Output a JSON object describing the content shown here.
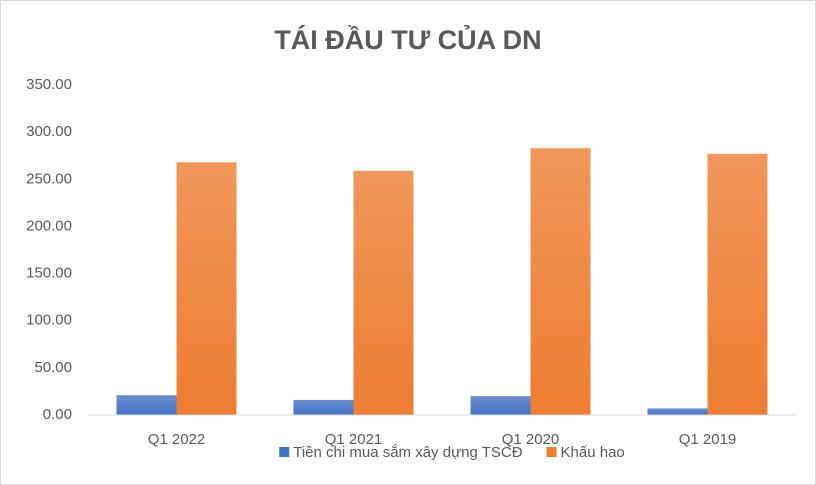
{
  "chart_data": {
    "type": "bar",
    "title": "TÁI ĐẦU TƯ CỦA DN",
    "categories": [
      "Q1 2022",
      "Q1 2021",
      "Q1 2020",
      "Q1 2019"
    ],
    "series": [
      {
        "name": "Tiền chi mua sắm xây dựng TSCĐ",
        "color": "#4472c4",
        "values": [
          21,
          16,
          20,
          7
        ]
      },
      {
        "name": "Khấu hao",
        "color": "#ed7d31",
        "values": [
          268,
          259,
          283,
          277
        ]
      }
    ],
    "ylim": [
      0,
      350
    ],
    "yticks": [
      {
        "value": 0,
        "label": "0.00"
      },
      {
        "value": 50,
        "label": "50.00"
      },
      {
        "value": 100,
        "label": "100.00"
      },
      {
        "value": 150,
        "label": "150.00"
      },
      {
        "value": 200,
        "label": "200.00"
      },
      {
        "value": 250,
        "label": "250.00"
      },
      {
        "value": 300,
        "label": "300.00"
      },
      {
        "value": 350,
        "label": "350.00"
      }
    ],
    "grid": false,
    "legend": "bottom"
  }
}
